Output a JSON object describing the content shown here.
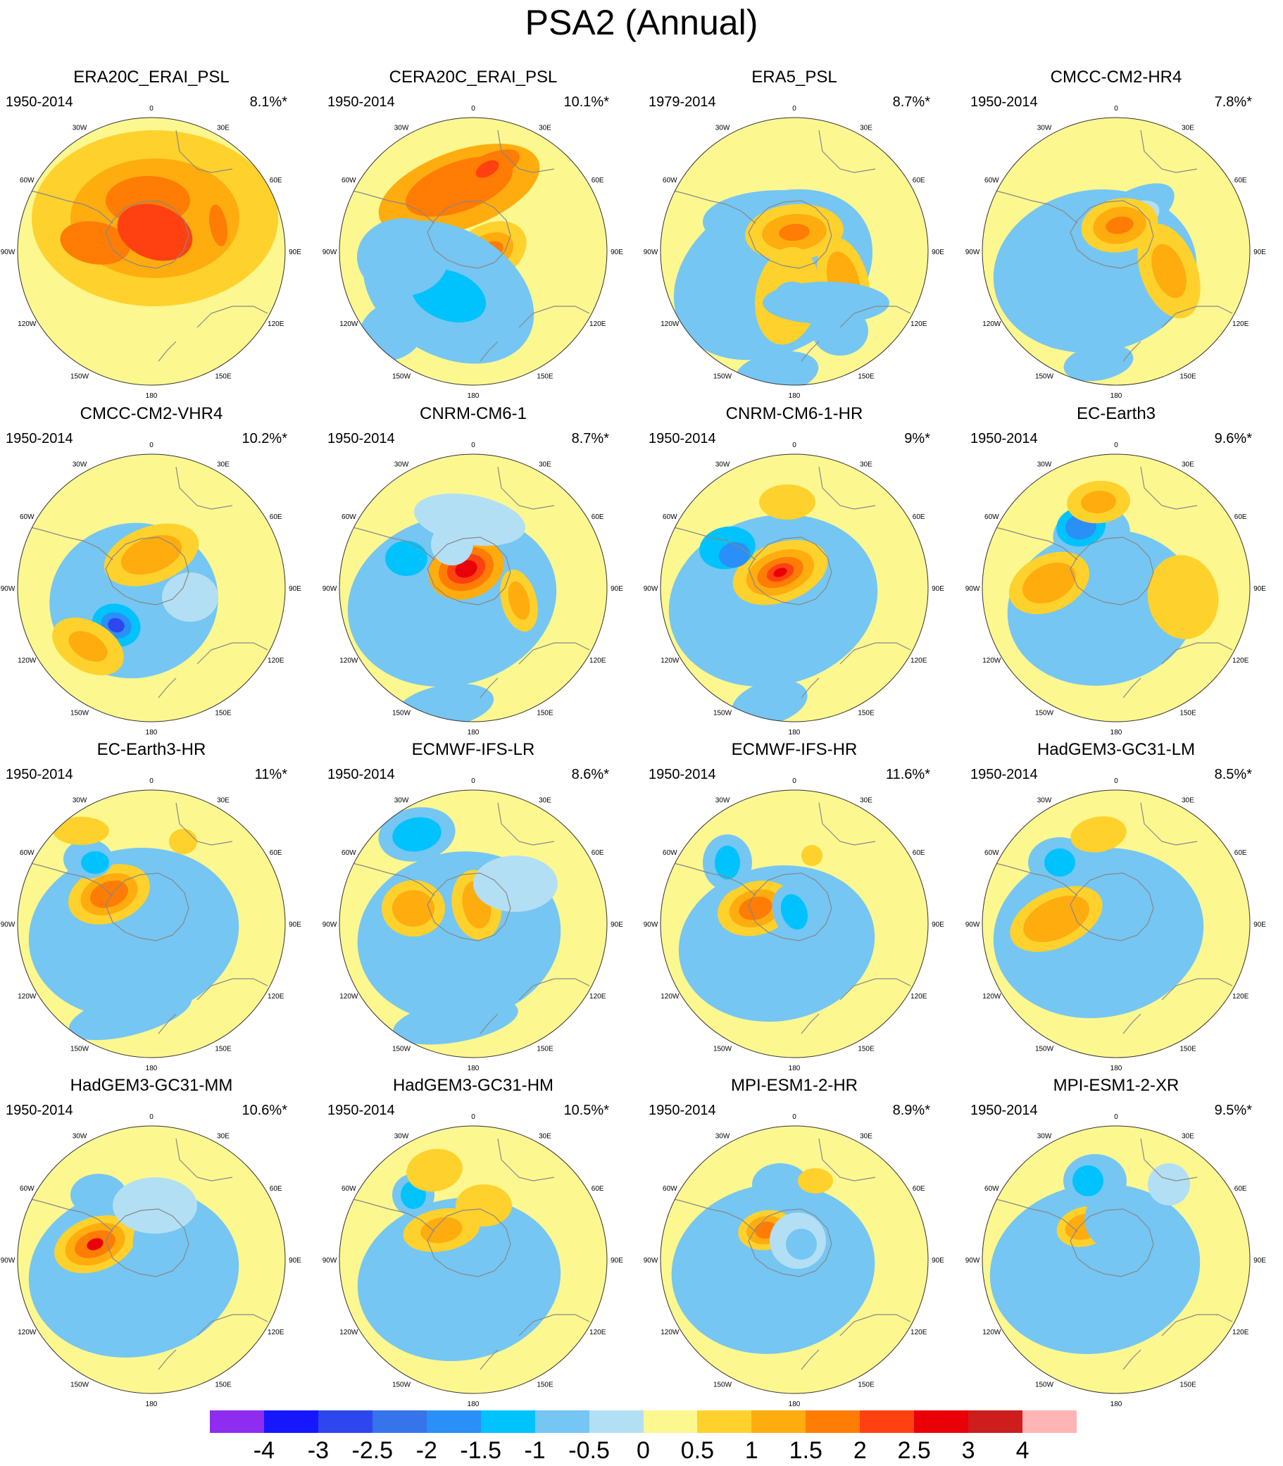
{
  "title": "PSA2 (Annual)",
  "panels": [
    {
      "name": "ERA20C_ERAI_PSL",
      "period": "1950-2014",
      "pct": "8.1%*",
      "blobs": [
        [
          200,
          140,
          175,
          125,
          0,
          1
        ],
        [
          200,
          140,
          120,
          85,
          0,
          2
        ],
        [
          290,
          150,
          30,
          12,
          80,
          3
        ],
        [
          115,
          175,
          50,
          30,
          10,
          3
        ],
        [
          190,
          115,
          60,
          35,
          0,
          3
        ],
        [
          200,
          160,
          55,
          38,
          20,
          4
        ]
      ]
    },
    {
      "name": "CERA20C_ERAI_PSL",
      "period": "1950-2014",
      "pct": "10.1%*",
      "blobs": [
        [
          175,
          100,
          120,
          55,
          -20,
          2
        ],
        [
          175,
          95,
          80,
          35,
          -20,
          3
        ],
        [
          215,
          70,
          50,
          20,
          -25,
          3
        ],
        [
          215,
          70,
          18,
          10,
          -30,
          4
        ],
        [
          215,
          190,
          60,
          40,
          -30,
          1
        ],
        [
          215,
          190,
          40,
          26,
          -30,
          2
        ],
        [
          215,
          190,
          25,
          14,
          -30,
          3
        ],
        [
          160,
          245,
          130,
          90,
          30,
          -1
        ],
        [
          160,
          250,
          55,
          35,
          20,
          -2
        ],
        [
          95,
          195,
          65,
          55,
          0,
          -1
        ],
        [
          80,
          300,
          50,
          40,
          -30,
          -1
        ]
      ]
    },
    {
      "name": "ERA5_PSL",
      "period": "1979-2014",
      "pct": "8.7%*",
      "blobs": [
        [
          165,
          220,
          150,
          110,
          -30,
          -1
        ],
        [
          175,
          145,
          110,
          45,
          0,
          -1
        ],
        [
          265,
          230,
          35,
          65,
          -15,
          1
        ],
        [
          265,
          230,
          22,
          44,
          -15,
          2
        ],
        [
          195,
          160,
          70,
          40,
          -5,
          1
        ],
        [
          195,
          160,
          46,
          26,
          -5,
          2
        ],
        [
          195,
          160,
          22,
          12,
          -5,
          3
        ],
        [
          185,
          250,
          45,
          70,
          10,
          1
        ],
        [
          192,
          250,
          25,
          20,
          0,
          -1
        ],
        [
          240,
          260,
          90,
          30,
          0,
          -1
        ],
        [
          170,
          360,
          60,
          30,
          -10,
          -1
        ],
        [
          260,
          300,
          40,
          35,
          0,
          -1
        ]
      ]
    },
    {
      "name": "CMCC-CM2-HR4",
      "period": "1950-2014",
      "pct": "7.8%*",
      "blobs": [
        [
          165,
          215,
          145,
          115,
          -10,
          -1
        ],
        [
          215,
          135,
          70,
          32,
          -30,
          -1
        ],
        [
          210,
          145,
          50,
          24,
          -25,
          0
        ],
        [
          270,
          215,
          40,
          70,
          -20,
          1
        ],
        [
          270,
          215,
          22,
          40,
          -20,
          2
        ],
        [
          200,
          150,
          55,
          38,
          -10,
          1
        ],
        [
          200,
          150,
          38,
          26,
          -10,
          2
        ],
        [
          200,
          150,
          20,
          12,
          -10,
          3
        ],
        [
          160,
          265,
          60,
          40,
          10,
          -1
        ],
        [
          170,
          345,
          50,
          25,
          -10,
          -1
        ],
        [
          100,
          270,
          40,
          60,
          -30,
          -1
        ]
      ]
    },
    {
      "name": "CMCC-CM2-VHR4",
      "period": "1950-2014",
      "pct": "10.2%*",
      "blobs": [
        [
          170,
          205,
          120,
          110,
          -10,
          -1
        ],
        [
          195,
          140,
          70,
          40,
          -20,
          1
        ],
        [
          195,
          140,
          45,
          25,
          -20,
          2
        ],
        [
          145,
          240,
          50,
          45,
          20,
          -1
        ],
        [
          145,
          240,
          35,
          30,
          20,
          -2
        ],
        [
          145,
          240,
          22,
          18,
          20,
          -3
        ],
        [
          145,
          240,
          12,
          10,
          20,
          -4
        ],
        [
          105,
          270,
          55,
          35,
          30,
          1
        ],
        [
          105,
          270,
          30,
          18,
          30,
          2
        ],
        [
          250,
          200,
          40,
          35,
          0,
          0
        ]
      ]
    },
    {
      "name": "CNRM-CM6-1",
      "period": "1950-2014",
      "pct": "8.7%*",
      "blobs": [
        [
          165,
          205,
          150,
          120,
          -15,
          -1
        ],
        [
          185,
          160,
          55,
          42,
          -20,
          2
        ],
        [
          185,
          160,
          40,
          30,
          -20,
          3
        ],
        [
          185,
          160,
          28,
          20,
          -20,
          4
        ],
        [
          185,
          160,
          16,
          12,
          -20,
          5
        ],
        [
          100,
          145,
          30,
          25,
          0,
          -2
        ],
        [
          260,
          205,
          25,
          45,
          -15,
          1
        ],
        [
          260,
          205,
          14,
          28,
          -15,
          2
        ],
        [
          165,
          125,
          30,
          30,
          0,
          0
        ],
        [
          155,
          355,
          70,
          30,
          -10,
          -1
        ],
        [
          190,
          90,
          80,
          35,
          10,
          0
        ]
      ]
    },
    {
      "name": "CNRM-CM6-1-HR",
      "period": "1950-2014",
      "pct": "9%*",
      "blobs": [
        [
          165,
          205,
          150,
          120,
          -15,
          -1
        ],
        [
          175,
          165,
          70,
          42,
          -20,
          1
        ],
        [
          175,
          165,
          50,
          30,
          -20,
          2
        ],
        [
          175,
          165,
          34,
          20,
          -20,
          3
        ],
        [
          175,
          165,
          20,
          12,
          -20,
          4
        ],
        [
          175,
          165,
          10,
          6,
          -20,
          5
        ],
        [
          100,
          130,
          40,
          30,
          -10,
          -2
        ],
        [
          110,
          140,
          22,
          18,
          -10,
          -3
        ],
        [
          185,
          65,
          40,
          25,
          0,
          1
        ],
        [
          160,
          350,
          55,
          30,
          -15,
          -1
        ],
        [
          110,
          270,
          60,
          30,
          -20,
          -1
        ]
      ]
    },
    {
      "name": "EC-Earth3",
      "period": "1950-2014",
      "pct": "9.6%*",
      "blobs": [
        [
          175,
          215,
          135,
          110,
          -10,
          -1
        ],
        [
          160,
          110,
          55,
          40,
          -10,
          -1
        ],
        [
          145,
          100,
          35,
          28,
          -10,
          -2
        ],
        [
          145,
          100,
          22,
          18,
          -10,
          -3
        ],
        [
          170,
          65,
          45,
          30,
          -5,
          1
        ],
        [
          170,
          65,
          25,
          16,
          -5,
          2
        ],
        [
          100,
          180,
          60,
          40,
          -25,
          1
        ],
        [
          100,
          180,
          40,
          26,
          -25,
          2
        ],
        [
          210,
          290,
          50,
          25,
          -30,
          -1
        ],
        [
          290,
          200,
          50,
          60,
          -10,
          1
        ]
      ]
    },
    {
      "name": "EC-Earth3-HR",
      "period": "1950-2014",
      "pct": "11%*",
      "blobs": [
        [
          170,
          200,
          150,
          120,
          -10,
          -1
        ],
        [
          135,
          145,
          60,
          40,
          -20,
          1
        ],
        [
          135,
          145,
          42,
          28,
          -20,
          2
        ],
        [
          135,
          145,
          28,
          18,
          -20,
          3
        ],
        [
          105,
          95,
          35,
          28,
          0,
          -1
        ],
        [
          115,
          100,
          20,
          16,
          0,
          -2
        ],
        [
          95,
          55,
          40,
          20,
          0,
          1
        ],
        [
          240,
          70,
          20,
          18,
          0,
          1
        ],
        [
          230,
          200,
          35,
          60,
          -15,
          -1
        ],
        [
          165,
          315,
          90,
          30,
          -15,
          -1
        ]
      ]
    },
    {
      "name": "ECMWF-IFS-LR",
      "period": "1950-2014",
      "pct": "8.6%*",
      "blobs": [
        [
          175,
          205,
          145,
          120,
          -10,
          -1
        ],
        [
          115,
          60,
          55,
          38,
          -10,
          -1
        ],
        [
          115,
          60,
          35,
          24,
          -10,
          -2
        ],
        [
          110,
          165,
          45,
          40,
          0,
          1
        ],
        [
          110,
          165,
          30,
          26,
          0,
          2
        ],
        [
          200,
          160,
          35,
          50,
          -10,
          1
        ],
        [
          200,
          160,
          20,
          34,
          -10,
          2
        ],
        [
          170,
          325,
          90,
          30,
          -10,
          -1
        ],
        [
          255,
          130,
          60,
          40,
          0,
          0
        ]
      ]
    },
    {
      "name": "ECMWF-IFS-HR",
      "period": "1950-2014",
      "pct": "11.6%*",
      "blobs": [
        [
          170,
          215,
          140,
          110,
          -10,
          -1
        ],
        [
          140,
          165,
          55,
          38,
          -15,
          1
        ],
        [
          140,
          165,
          38,
          26,
          -15,
          2
        ],
        [
          140,
          165,
          24,
          16,
          -15,
          3
        ],
        [
          100,
          100,
          35,
          40,
          0,
          -1
        ],
        [
          100,
          100,
          18,
          24,
          0,
          -2
        ],
        [
          195,
          170,
          30,
          40,
          -20,
          -1
        ],
        [
          195,
          170,
          18,
          26,
          -20,
          -2
        ],
        [
          160,
          240,
          70,
          30,
          -10,
          -1
        ],
        [
          220,
          90,
          15,
          15,
          0,
          1
        ]
      ]
    },
    {
      "name": "HadGEM3-GC31-LM",
      "period": "1950-2014",
      "pct": "8.5%*",
      "blobs": [
        [
          170,
          200,
          150,
          120,
          -10,
          -1
        ],
        [
          110,
          180,
          70,
          40,
          -25,
          1
        ],
        [
          110,
          180,
          50,
          28,
          -25,
          2
        ],
        [
          115,
          100,
          45,
          36,
          0,
          -1
        ],
        [
          115,
          100,
          22,
          20,
          0,
          -2
        ],
        [
          170,
          60,
          40,
          25,
          -10,
          1
        ],
        [
          220,
          150,
          45,
          55,
          -10,
          -1
        ],
        [
          200,
          280,
          80,
          30,
          -20,
          -1
        ]
      ]
    },
    {
      "name": "HadGEM3-GC31-MM",
      "period": "1950-2014",
      "pct": "10.6%*",
      "blobs": [
        [
          170,
          205,
          150,
          120,
          -10,
          -1
        ],
        [
          115,
          165,
          60,
          38,
          -20,
          1
        ],
        [
          115,
          165,
          44,
          28,
          -20,
          2
        ],
        [
          115,
          165,
          30,
          18,
          -20,
          3
        ],
        [
          115,
          165,
          12,
          8,
          -20,
          5
        ],
        [
          120,
          95,
          40,
          30,
          0,
          -1
        ],
        [
          210,
          170,
          40,
          50,
          -20,
          -1
        ],
        [
          200,
          110,
          60,
          40,
          0,
          0
        ]
      ]
    },
    {
      "name": "HadGEM3-GC31-HM",
      "period": "1950-2014",
      "pct": "10.5%*",
      "blobs": [
        [
          175,
          215,
          145,
          115,
          -10,
          -1
        ],
        [
          110,
          95,
          30,
          30,
          0,
          -1
        ],
        [
          110,
          95,
          18,
          20,
          0,
          -2
        ],
        [
          150,
          145,
          55,
          30,
          -10,
          1
        ],
        [
          150,
          145,
          30,
          18,
          -10,
          2
        ],
        [
          140,
          60,
          40,
          30,
          -10,
          1
        ],
        [
          210,
          110,
          40,
          30,
          0,
          1
        ],
        [
          165,
          260,
          90,
          30,
          -10,
          -1
        ]
      ]
    },
    {
      "name": "MPI-ESM1-2-HR",
      "period": "1950-2014",
      "pct": "8.9%*",
      "blobs": [
        [
          165,
          200,
          145,
          120,
          -10,
          -1
        ],
        [
          155,
          145,
          40,
          28,
          -10,
          1
        ],
        [
          155,
          145,
          28,
          20,
          -10,
          2
        ],
        [
          155,
          145,
          16,
          12,
          -10,
          3
        ],
        [
          175,
          80,
          40,
          30,
          0,
          -1
        ],
        [
          225,
          75,
          25,
          18,
          0,
          1
        ],
        [
          200,
          160,
          40,
          40,
          0,
          0
        ],
        [
          205,
          165,
          22,
          22,
          0,
          -1
        ]
      ]
    },
    {
      "name": "MPI-ESM1-2-XR",
      "period": "1950-2014",
      "pct": "9.5%*",
      "blobs": [
        [
          165,
          200,
          150,
          120,
          -10,
          -1
        ],
        [
          150,
          140,
          40,
          28,
          -15,
          1
        ],
        [
          150,
          140,
          28,
          18,
          -15,
          2
        ],
        [
          165,
          75,
          45,
          38,
          0,
          -1
        ],
        [
          155,
          75,
          22,
          22,
          0,
          -2
        ],
        [
          200,
          130,
          50,
          45,
          0,
          -1
        ],
        [
          270,
          80,
          30,
          30,
          0,
          0
        ]
      ]
    }
  ],
  "colorbar": {
    "colors": [
      "#8e2cf0",
      "#1717fe",
      "#2e46ed",
      "#3574ea",
      "#2a8ff6",
      "#00c2fc",
      "#75c6f2",
      "#b3dff4",
      "#fdf790",
      "#ffd12d",
      "#ffac0f",
      "#ff7c05",
      "#ff4111",
      "#ea0108",
      "#cd1d1d",
      "#ffb5b5"
    ],
    "labels": [
      "-4",
      "-3",
      "-2.5",
      "-2",
      "-1.5",
      "-1",
      "-0.5",
      "0",
      "0.5",
      "1",
      "1.5",
      "2",
      "2.5",
      "3",
      "4"
    ]
  },
  "level_colors": {
    "-4": "#2e46ed",
    "-3": "#2a8ff6",
    "-2": "#00c2fc",
    "-1": "#75c6f2",
    "0": "#b3dff4",
    "1": "#ffd12d",
    "2": "#ffac0f",
    "3": "#ff7c05",
    "4": "#ff4111",
    "5": "#ea0108"
  },
  "background_color": "#fdf790",
  "map_labels": [
    "0",
    "30E",
    "60E",
    "90E",
    "120E",
    "150E",
    "180",
    "150W",
    "120W",
    "90W",
    "60W",
    "30W"
  ]
}
